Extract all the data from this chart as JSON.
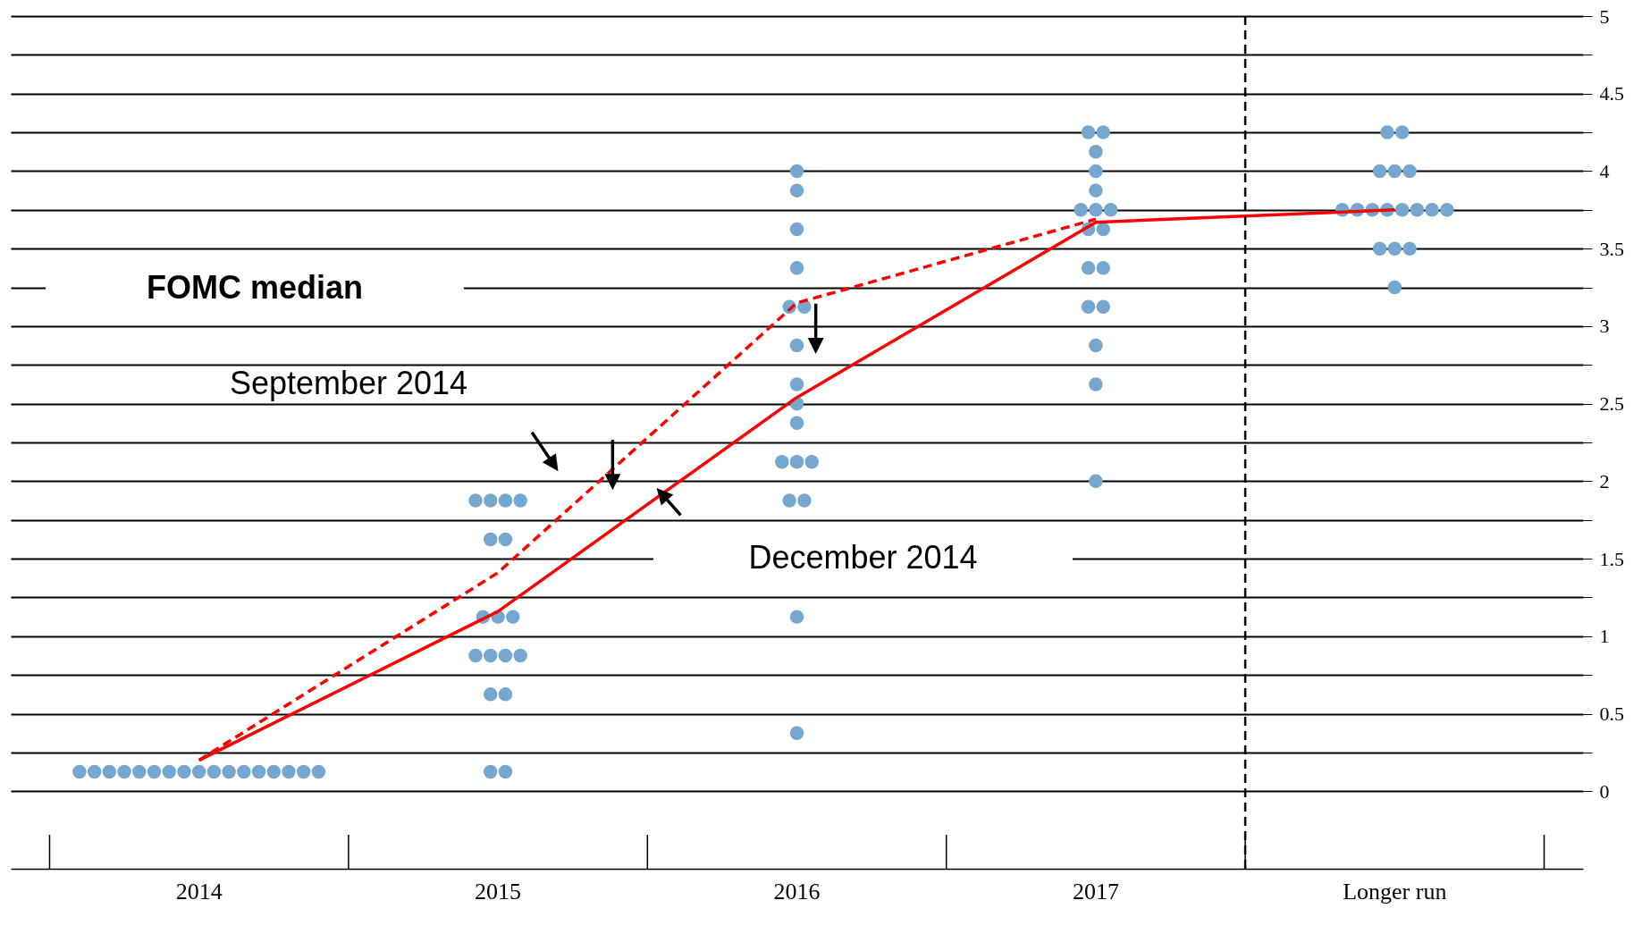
{
  "chart_data": {
    "type": "scatter",
    "annotations": [
      "FOMC median",
      "September 2014",
      "December 2014"
    ],
    "categories": [
      "2014",
      "2015",
      "2016",
      "2017",
      "Longer run"
    ],
    "marker": "circle",
    "series": [
      {
        "color": "#75a7d1",
        "values": [
          0.125,
          0.125,
          0.375,
          2,
          3.25
        ]
      },
      {
        "color": "#75a7d1",
        "values": [
          0.125,
          0.125,
          1.125,
          2.625,
          3.5
        ]
      },
      {
        "color": "#75a7d1",
        "values": [
          0.125,
          0.625,
          1.875,
          2.875,
          3.5
        ]
      },
      {
        "color": "#75a7d1",
        "values": [
          0.125,
          0.625,
          1.875,
          3.125,
          3.5
        ]
      },
      {
        "color": "#75a7d1",
        "values": [
          0.125,
          0.875,
          2.125,
          3.125,
          3.75
        ]
      },
      {
        "color": "#75a7d1",
        "values": [
          0.125,
          0.875,
          2.125,
          3.375,
          3.75
        ]
      },
      {
        "color": "#75a7d1",
        "values": [
          0.125,
          0.875,
          2.125,
          3.375,
          3.75
        ]
      },
      {
        "color": "#75a7d1",
        "values": [
          0.125,
          0.875,
          2.375,
          3.625,
          3.75
        ]
      },
      {
        "color": "#75a7d1",
        "values": [
          0.125,
          1.125,
          2.5,
          3.625,
          3.75
        ]
      },
      {
        "color": "#75a7d1",
        "values": [
          0.125,
          1.125,
          2.625,
          3.75,
          3.75
        ]
      },
      {
        "color": "#75a7d1",
        "values": [
          0.125,
          1.125,
          2.875,
          3.75,
          3.75
        ]
      },
      {
        "color": "#75a7d1",
        "values": [
          0.125,
          1.625,
          3.125,
          3.75,
          3.75
        ]
      },
      {
        "color": "#75a7d1",
        "values": [
          0.125,
          1.625,
          3.125,
          3.875,
          4
        ]
      },
      {
        "color": "#75a7d1",
        "values": [
          0.125,
          1.875,
          3.375,
          4,
          4
        ]
      },
      {
        "color": "#75a7d1",
        "values": [
          0.125,
          1.875,
          3.625,
          4.125,
          4
        ]
      },
      {
        "color": "#75a7d1",
        "values": [
          0.125,
          1.875,
          3.875,
          4.25,
          4.25
        ]
      },
      {
        "color": "#75a7d1",
        "values": [
          0.125,
          1.875,
          4,
          4.25,
          4.25
        ]
      },
      {
        "type": "line",
        "color": "#ff0000",
        "marker": "none",
        "line_style": "dashed",
        "values": [
          0.2,
          1.41,
          3.15,
          3.69,
          null
        ]
      },
      {
        "type": "line",
        "color": "#ff0000",
        "marker": "none",
        "line_style": "solid",
        "values": [
          0.2,
          1.16,
          2.54,
          3.67,
          3.75
        ]
      }
    ],
    "ylim": [
      -0.5,
      5
    ],
    "yticks": [
      0,
      {
        "value": 0.25,
        "label": null
      },
      0.5,
      {
        "value": 0.75,
        "label": null
      },
      1,
      {
        "value": 1.25,
        "label": null
      },
      1.5,
      {
        "value": 1.75,
        "label": null
      },
      2,
      {
        "value": 2.25,
        "label": null
      },
      2.5,
      {
        "value": 2.75,
        "label": null
      },
      3,
      {
        "value": 3.25,
        "label": null
      },
      3.5,
      {
        "value": 3.75,
        "label": null
      },
      4,
      {
        "value": 4.25,
        "label": null
      },
      4.5,
      {
        "value": 4.75,
        "label": null
      },
      5
    ],
    "grid": "y"
  }
}
